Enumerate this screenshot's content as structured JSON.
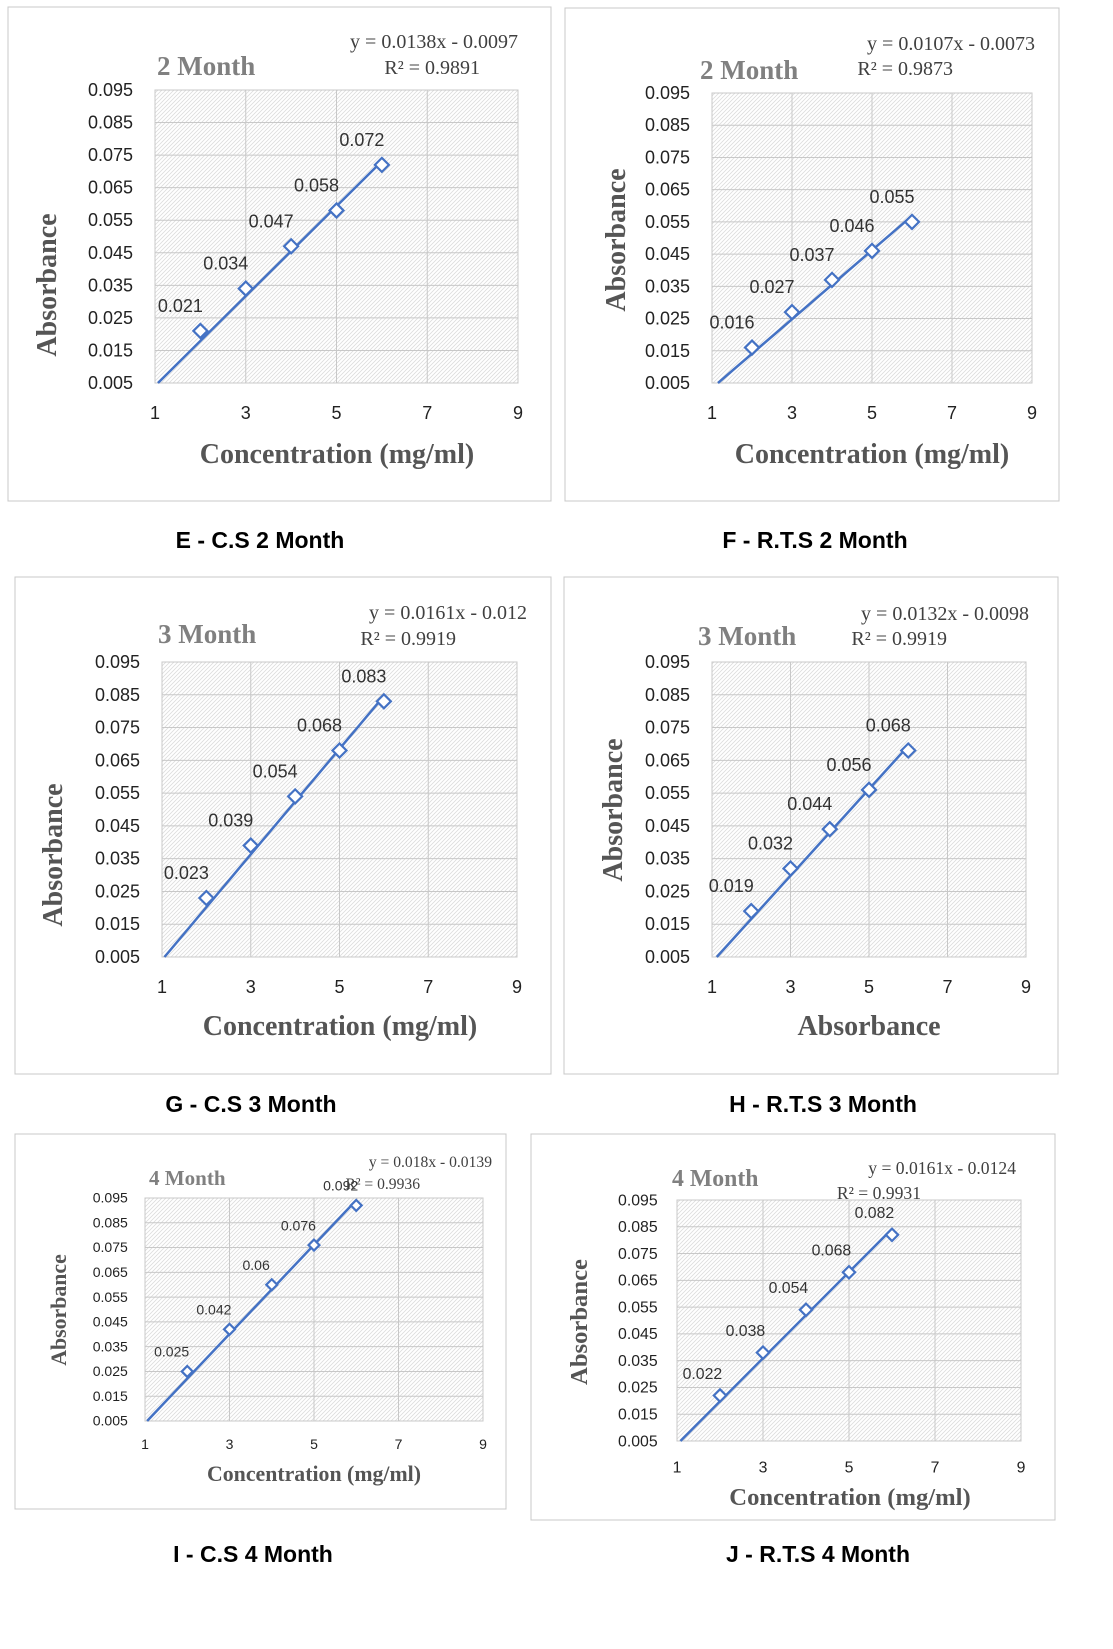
{
  "chart_data": [
    {
      "id": "E",
      "type": "scatter",
      "title": "2 Month",
      "equation": "y =  0.0138x  -  0.0097",
      "r2": "R² = 0.9891",
      "xlabel": "Concentration (mg/ml)",
      "ylabel": "Absorbance",
      "caption": "E - C.S 2 Month",
      "xlim": [
        1,
        9
      ],
      "ylim": [
        0.005,
        0.095
      ],
      "xticks": [
        "1",
        "3",
        "5",
        "7",
        "9"
      ],
      "yticks": [
        "0.095",
        "0.085",
        "0.075",
        "0.065",
        "0.055",
        "0.045",
        "0.035",
        "0.025",
        "0.015",
        "0.005"
      ],
      "x": [
        2,
        3,
        4,
        5,
        6
      ],
      "y": [
        0.021,
        0.034,
        0.047,
        0.058,
        0.072
      ],
      "labels": [
        "0.021",
        "0.034",
        "0.047",
        "0.058",
        "0.072"
      ],
      "slope": 0.0138,
      "intercept": -0.0097,
      "grid": true
    },
    {
      "id": "F",
      "type": "scatter",
      "title": "2 Month",
      "equation": "y = 0.0107x - 0.0073",
      "r2": "R² = 0.9873",
      "xlabel": "Concentration (mg/ml)",
      "ylabel": "Absorbance",
      "caption": "F - R.T.S 2 Month",
      "xlim": [
        1,
        9
      ],
      "ylim": [
        0.005,
        0.095
      ],
      "xticks": [
        "1",
        "3",
        "5",
        "7",
        "9"
      ],
      "yticks": [
        "0.095",
        "0.085",
        "0.075",
        "0.065",
        "0.055",
        "0.045",
        "0.035",
        "0.025",
        "0.015",
        "0.005"
      ],
      "x": [
        2,
        3,
        4,
        5,
        6
      ],
      "y": [
        0.016,
        0.027,
        0.037,
        0.046,
        0.055
      ],
      "labels": [
        "0.016",
        "0.027",
        "0.037",
        "0.046",
        "0.055"
      ],
      "slope": 0.0107,
      "intercept": -0.0073,
      "grid": true
    },
    {
      "id": "G",
      "type": "scatter",
      "title": "3 Month",
      "equation": "y = 0.0161x - 0.012",
      "r2": "R² = 0.9919",
      "xlabel": "Concentration (mg/ml)",
      "ylabel": "Absorbance",
      "caption": "G - C.S 3 Month",
      "xlim": [
        1,
        9
      ],
      "ylim": [
        0.005,
        0.095
      ],
      "xticks": [
        "1",
        "3",
        "5",
        "7",
        "9"
      ],
      "yticks": [
        "0.095",
        "0.085",
        "0.075",
        "0.065",
        "0.055",
        "0.045",
        "0.035",
        "0.025",
        "0.015",
        "0.005"
      ],
      "x": [
        2,
        3,
        4,
        5,
        6
      ],
      "y": [
        0.023,
        0.039,
        0.054,
        0.068,
        0.083
      ],
      "labels": [
        "0.023",
        "0.039",
        "0.054",
        "0.068",
        "0.083"
      ],
      "slope": 0.0161,
      "intercept": -0.012,
      "grid": true
    },
    {
      "id": "H",
      "type": "scatter",
      "title": "3 Month",
      "equation": "y = 0.0132x - 0.0098",
      "r2": "R² = 0.9919",
      "xlabel": "Absorbance",
      "ylabel": "Absorbance",
      "caption": "H - R.T.S 3 Month",
      "xlim": [
        1,
        9
      ],
      "ylim": [
        0.005,
        0.095
      ],
      "xticks": [
        "1",
        "3",
        "5",
        "7",
        "9"
      ],
      "yticks": [
        "0.095",
        "0.085",
        "0.075",
        "0.065",
        "0.055",
        "0.045",
        "0.035",
        "0.025",
        "0.015",
        "0.005"
      ],
      "x": [
        2,
        3,
        4,
        5,
        6
      ],
      "y": [
        0.019,
        0.032,
        0.044,
        0.056,
        0.068
      ],
      "labels": [
        "0.019",
        "0.032",
        "0.044",
        "0.056",
        "0.068"
      ],
      "slope": 0.0132,
      "intercept": -0.0098,
      "grid": true
    },
    {
      "id": "I",
      "type": "scatter",
      "title": "4 Month",
      "equation": "y = 0.018x - 0.0139",
      "r2": "R² = 0.9936",
      "xlabel": "Concentration (mg/ml)",
      "ylabel": "Absorbance",
      "caption": "I - C.S 4 Month",
      "xlim": [
        1,
        9
      ],
      "ylim": [
        0.005,
        0.095
      ],
      "xticks": [
        "1",
        "3",
        "5",
        "7",
        "9"
      ],
      "yticks": [
        "0.095",
        "0.085",
        "0.075",
        "0.065",
        "0.055",
        "0.045",
        "0.035",
        "0.025",
        "0.015",
        "0.005"
      ],
      "x": [
        2,
        3,
        4,
        5,
        6
      ],
      "y": [
        0.025,
        0.042,
        0.06,
        0.076,
        0.092
      ],
      "labels": [
        "0.025",
        "0.042",
        "0.06",
        "0.076",
        "0.092"
      ],
      "slope": 0.018,
      "intercept": -0.0139,
      "grid": true
    },
    {
      "id": "J",
      "type": "scatter",
      "title": "4 Month",
      "equation": "y = 0.0161x - 0.0124",
      "r2": "R² = 0.9931",
      "xlabel": "Concentration (mg/ml)",
      "ylabel": "Absorbance",
      "caption": "J - R.T.S 4 Month",
      "xlim": [
        1,
        9
      ],
      "ylim": [
        0.005,
        0.095
      ],
      "xticks": [
        "1",
        "3",
        "5",
        "7",
        "9"
      ],
      "yticks": [
        "0.095",
        "0.085",
        "0.075",
        "0.065",
        "0.055",
        "0.045",
        "0.035",
        "0.025",
        "0.015",
        "0.005"
      ],
      "x": [
        2,
        3,
        4,
        5,
        6
      ],
      "y": [
        0.022,
        0.038,
        0.054,
        0.068,
        0.082
      ],
      "labels": [
        "0.022",
        "0.038",
        "0.054",
        "0.068",
        "0.082"
      ],
      "slope": 0.0161,
      "intercept": -0.0124,
      "grid": true
    }
  ],
  "colors": {
    "series": "#4472c4",
    "grid": "#c8c8c8",
    "hatch": "#dcdcdc",
    "title": "#808080",
    "axis_label": "#555555"
  }
}
